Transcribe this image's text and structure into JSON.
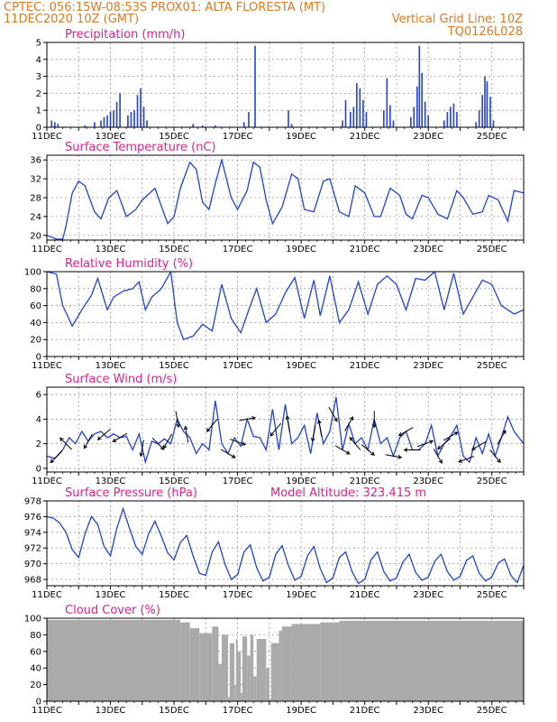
{
  "header": {
    "line1_left": "CPTEC:  056:15W-08:53S   PROX01: ALTA FLORESTA (MT)",
    "line2_left": "11DEC2020 10Z (GMT)",
    "line2_right": "Vertical Grid Line: 10Z",
    "line3_right": "TQ0126L028"
  },
  "colors": {
    "header": "#e07820",
    "title": "#e0208a",
    "series": "#2040e0",
    "cloud": "#aaaaaa"
  },
  "date_ticks": [
    "11DEC",
    "13DEC",
    "15DEC",
    "17DEC",
    "19DEC",
    "21DEC",
    "23DEC",
    "25DEC"
  ],
  "chart_data": [
    {
      "type": "bar",
      "title": "Precipitation (mm/h)",
      "ylim": [
        0,
        5
      ],
      "yticks": [
        "0",
        "1",
        "2",
        "3",
        "4",
        "5"
      ],
      "x_start": 0,
      "x_end": 15,
      "bars": [
        [
          0.15,
          0.4
        ],
        [
          0.25,
          0.3
        ],
        [
          0.35,
          0.2
        ],
        [
          1.2,
          0.1
        ],
        [
          1.5,
          0.3
        ],
        [
          1.7,
          0.4
        ],
        [
          1.8,
          0.6
        ],
        [
          1.9,
          0.7
        ],
        [
          2.0,
          0.9
        ],
        [
          2.1,
          1.0
        ],
        [
          2.2,
          1.5
        ],
        [
          2.3,
          2.0
        ],
        [
          2.55,
          0.7
        ],
        [
          2.65,
          0.9
        ],
        [
          2.75,
          1.0
        ],
        [
          2.85,
          1.9
        ],
        [
          2.95,
          2.3
        ],
        [
          3.05,
          1.2
        ],
        [
          3.15,
          0.4
        ],
        [
          4.6,
          0.2
        ],
        [
          4.9,
          0.1
        ],
        [
          5.3,
          0.1
        ],
        [
          6.2,
          0.3
        ],
        [
          6.35,
          0.9
        ],
        [
          6.55,
          4.8
        ],
        [
          7.6,
          1.0
        ],
        [
          7.7,
          0.2
        ],
        [
          9.3,
          0.4
        ],
        [
          9.4,
          1.6
        ],
        [
          9.55,
          0.9
        ],
        [
          9.65,
          1.2
        ],
        [
          9.75,
          2.6
        ],
        [
          9.85,
          2.3
        ],
        [
          9.95,
          1.6
        ],
        [
          10.05,
          0.9
        ],
        [
          10.6,
          1.0
        ],
        [
          10.7,
          2.9
        ],
        [
          10.8,
          1.3
        ],
        [
          10.9,
          0.4
        ],
        [
          11.45,
          0.6
        ],
        [
          11.55,
          1.2
        ],
        [
          11.65,
          2.4
        ],
        [
          11.72,
          4.8
        ],
        [
          11.8,
          3.2
        ],
        [
          11.9,
          1.5
        ],
        [
          12.0,
          0.7
        ],
        [
          12.5,
          0.4
        ],
        [
          12.6,
          0.9
        ],
        [
          12.7,
          1.2
        ],
        [
          12.8,
          1.4
        ],
        [
          12.9,
          0.9
        ],
        [
          13.5,
          0.3
        ],
        [
          13.6,
          1.0
        ],
        [
          13.7,
          1.9
        ],
        [
          13.78,
          3.0
        ],
        [
          13.85,
          2.7
        ],
        [
          13.95,
          1.8
        ],
        [
          14.05,
          0.4
        ]
      ]
    },
    {
      "type": "line",
      "title": "Surface Temperature (nC)",
      "ylim": [
        19,
        37
      ],
      "yticks": [
        "20",
        "24",
        "28",
        "32",
        "36"
      ],
      "ytick_values": [
        20,
        24,
        28,
        32,
        36
      ],
      "x_start": 0,
      "x_end": 15,
      "x": [
        0,
        0.3,
        0.5,
        0.6,
        0.8,
        1.0,
        1.2,
        1.5,
        1.7,
        1.95,
        2.2,
        2.5,
        2.8,
        3.0,
        3.4,
        3.8,
        4.0,
        4.2,
        4.5,
        4.7,
        4.9,
        5.1,
        5.3,
        5.5,
        5.8,
        6.0,
        6.3,
        6.5,
        6.7,
        6.9,
        7.1,
        7.4,
        7.7,
        7.9,
        8.1,
        8.4,
        8.7,
        8.9,
        9.2,
        9.5,
        9.7,
        10.0,
        10.3,
        10.5,
        10.8,
        11.1,
        11.3,
        11.5,
        11.8,
        12.0,
        12.3,
        12.6,
        12.9,
        13.1,
        13.4,
        13.7,
        13.9,
        14.2,
        14.5,
        14.7,
        15.0
      ],
      "y": [
        20,
        19.2,
        19.2,
        22,
        29,
        31.5,
        30.5,
        25,
        23.5,
        28,
        29.5,
        24,
        25.5,
        27.5,
        30,
        22.5,
        24,
        30,
        35.5,
        34,
        27,
        25.5,
        31,
        36,
        28,
        25.5,
        29.5,
        35.5,
        34.5,
        27.5,
        22.5,
        26,
        33,
        32,
        25.5,
        25,
        31.5,
        32,
        25,
        24,
        30.5,
        29,
        24,
        24,
        30,
        28.5,
        24.5,
        23.5,
        28.5,
        28,
        24.5,
        23.5,
        29.5,
        28,
        24.5,
        25,
        28.5,
        27.5,
        23,
        29.5,
        29
      ]
    },
    {
      "type": "line",
      "title": "Relative Humidity (%)",
      "ylim": [
        0,
        100
      ],
      "yticks": [
        "0",
        "20",
        "40",
        "60",
        "80",
        "100"
      ],
      "ytick_values": [
        0,
        20,
        40,
        60,
        80,
        100
      ],
      "x_start": 0,
      "x_end": 15,
      "x": [
        0,
        0.3,
        0.5,
        0.8,
        1.1,
        1.4,
        1.6,
        1.9,
        2.1,
        2.4,
        2.7,
        2.9,
        3.1,
        3.3,
        3.6,
        3.9,
        4.1,
        4.3,
        4.6,
        4.9,
        5.2,
        5.5,
        5.8,
        6.1,
        6.4,
        6.6,
        6.9,
        7.2,
        7.5,
        7.8,
        8.1,
        8.4,
        8.6,
        8.9,
        9.2,
        9.5,
        9.8,
        10.1,
        10.4,
        10.7,
        11.0,
        11.3,
        11.6,
        11.9,
        12.2,
        12.5,
        12.8,
        13.1,
        13.4,
        13.7,
        14.0,
        14.3,
        14.7,
        15.0
      ],
      "y": [
        100,
        97,
        60,
        36,
        55,
        72,
        92,
        55,
        70,
        77,
        80,
        88,
        55,
        70,
        80,
        100,
        40,
        20,
        24,
        38,
        30,
        85,
        45,
        28,
        60,
        80,
        40,
        50,
        75,
        93,
        45,
        90,
        48,
        95,
        40,
        55,
        88,
        50,
        85,
        95,
        85,
        55,
        92,
        90,
        100,
        55,
        98,
        50,
        70,
        90,
        85,
        60,
        50,
        55
      ]
    },
    {
      "type": "line",
      "title": "Surface Wind (m/s)",
      "ylim": [
        -0.3,
        6.6
      ],
      "yticks": [
        "0",
        "2",
        "4",
        "6"
      ],
      "ytick_values": [
        0,
        2,
        4,
        6
      ],
      "x_start": 0,
      "x_end": 15,
      "x": [
        0,
        0.25,
        0.5,
        0.7,
        0.9,
        1.1,
        1.3,
        1.5,
        1.7,
        1.9,
        2.1,
        2.3,
        2.5,
        2.7,
        2.9,
        3.1,
        3.3,
        3.5,
        3.7,
        3.9,
        4.1,
        4.3,
        4.5,
        4.7,
        4.9,
        5.1,
        5.3,
        5.5,
        5.7,
        5.9,
        6.1,
        6.3,
        6.5,
        6.7,
        6.9,
        7.1,
        7.3,
        7.5,
        7.7,
        7.9,
        8.1,
        8.3,
        8.5,
        8.7,
        8.9,
        9.1,
        9.3,
        9.5,
        9.7,
        9.9,
        10.1,
        10.3,
        10.5,
        10.7,
        10.9,
        11.1,
        11.3,
        11.5,
        11.7,
        11.9,
        12.1,
        12.3,
        12.5,
        12.7,
        12.9,
        13.1,
        13.3,
        13.5,
        13.7,
        13.9,
        14.1,
        14.3,
        14.5,
        14.7,
        15.0
      ],
      "y": [
        1.0,
        0.8,
        1.5,
        2.5,
        2.0,
        3.0,
        2.2,
        2.8,
        3.0,
        2.5,
        2.8,
        2.5,
        2.6,
        1.5,
        2.8,
        0.5,
        2.2,
        2.0,
        2.4,
        2.0,
        4.0,
        3.0,
        2.5,
        1.2,
        2.0,
        1.5,
        5.5,
        2.0,
        1.2,
        2.5,
        1.8,
        4.0,
        2.6,
        2.5,
        1.5,
        4.8,
        1.5,
        5.2,
        2.0,
        2.5,
        3.5,
        1.2,
        4.5,
        2.0,
        3.0,
        5.8,
        1.5,
        3.6,
        2.0,
        2.5,
        1.5,
        4.0,
        2.0,
        2.5,
        1.0,
        2.5,
        3.0,
        1.5,
        1.5,
        2.0,
        3.5,
        1.0,
        2.0,
        2.6,
        3.5,
        1.0,
        0.5,
        2.5,
        1.2,
        2.8,
        1.0,
        2.5,
        4.2,
        3.0,
        2.0
      ],
      "arrows": [
        [
          0.3,
          -135
        ],
        [
          0.6,
          135
        ],
        [
          1.3,
          -120
        ],
        [
          1.8,
          -140
        ],
        [
          2.3,
          -150
        ],
        [
          3.0,
          -100
        ],
        [
          3.5,
          -45
        ],
        [
          3.8,
          -120
        ],
        [
          4.1,
          -80
        ],
        [
          4.4,
          100
        ],
        [
          5.2,
          -130
        ],
        [
          5.7,
          -30
        ],
        [
          6.0,
          -20
        ],
        [
          6.3,
          10
        ],
        [
          7.2,
          -130
        ],
        [
          7.6,
          100
        ],
        [
          8.4,
          -100
        ],
        [
          8.6,
          100
        ],
        [
          9.0,
          -60
        ],
        [
          9.3,
          -30
        ],
        [
          9.5,
          60
        ],
        [
          9.7,
          130
        ],
        [
          10.1,
          -40
        ],
        [
          10.3,
          -90
        ],
        [
          10.9,
          -10
        ],
        [
          11.3,
          -150
        ],
        [
          11.5,
          180
        ],
        [
          11.9,
          20
        ],
        [
          12.3,
          -60
        ],
        [
          12.5,
          -140
        ],
        [
          12.7,
          30
        ],
        [
          13.2,
          -160
        ],
        [
          13.6,
          -150
        ],
        [
          14.1,
          -50
        ],
        [
          14.3,
          60
        ]
      ]
    },
    {
      "type": "line",
      "title": "Surface Pressure (hPa)",
      "annotation": "Model Altitude: 323.415  m",
      "ylim": [
        967.2,
        978
      ],
      "yticks": [
        "968",
        "970",
        "972",
        "974",
        "976",
        "978"
      ],
      "ytick_values": [
        968,
        970,
        972,
        974,
        976,
        978
      ],
      "x_start": 0,
      "x_end": 15,
      "x": [
        0,
        0.2,
        0.4,
        0.6,
        0.8,
        1.0,
        1.2,
        1.4,
        1.6,
        1.8,
        2.0,
        2.2,
        2.4,
        2.6,
        2.8,
        3.0,
        3.2,
        3.4,
        3.6,
        3.8,
        4.0,
        4.2,
        4.4,
        4.6,
        4.8,
        5.0,
        5.2,
        5.4,
        5.6,
        5.8,
        6.0,
        6.2,
        6.4,
        6.6,
        6.8,
        7.0,
        7.2,
        7.4,
        7.6,
        7.8,
        8.0,
        8.2,
        8.4,
        8.6,
        8.8,
        9.0,
        9.2,
        9.4,
        9.6,
        9.8,
        10.0,
        10.2,
        10.4,
        10.6,
        10.8,
        11.0,
        11.2,
        11.4,
        11.6,
        11.8,
        12.0,
        12.2,
        12.4,
        12.6,
        12.8,
        13.0,
        13.2,
        13.4,
        13.6,
        13.8,
        14.0,
        14.2,
        14.4,
        14.6,
        14.8,
        15.0
      ],
      "y": [
        976,
        975.8,
        975.2,
        974,
        971.8,
        970.8,
        973.8,
        976,
        975,
        972.2,
        971,
        974.5,
        977,
        974.5,
        972.2,
        971.2,
        973.8,
        975.4,
        973.5,
        971.4,
        970.5,
        972.7,
        973.6,
        971,
        968.8,
        968.5,
        971.5,
        972.8,
        970,
        968,
        968.6,
        971.5,
        972.4,
        969.5,
        967.8,
        968.3,
        971.2,
        972.3,
        969.8,
        967.9,
        968.4,
        971,
        972.2,
        969.4,
        967.6,
        968.2,
        970.8,
        971.5,
        969,
        967.5,
        968,
        970.5,
        971.5,
        969,
        967.8,
        968.2,
        970.2,
        971.2,
        968.9,
        967.9,
        968.3,
        970.3,
        971.2,
        969,
        967.9,
        968.4,
        970.4,
        971,
        968.8,
        967.8,
        968.3,
        970.1,
        970.6,
        968.5,
        967.6,
        969.8
      ]
    },
    {
      "type": "bar",
      "title": "Cloud Cover (%)",
      "ylim": [
        0,
        100
      ],
      "yticks": [
        "0",
        "20",
        "40",
        "60",
        "80",
        "100"
      ],
      "x_start": 0,
      "x_end": 15,
      "segments": [
        [
          0,
          4.2,
          98
        ],
        [
          4.2,
          4.5,
          95
        ],
        [
          4.5,
          4.8,
          88
        ],
        [
          4.8,
          5.2,
          82
        ],
        [
          5.2,
          5.4,
          90
        ],
        [
          5.4,
          5.5,
          45
        ],
        [
          5.5,
          5.7,
          80
        ],
        [
          5.7,
          5.75,
          5
        ],
        [
          5.75,
          5.9,
          70
        ],
        [
          5.9,
          5.95,
          20
        ],
        [
          5.95,
          6.0,
          75
        ],
        [
          6.0,
          6.1,
          60
        ],
        [
          6.1,
          6.15,
          10
        ],
        [
          6.15,
          6.3,
          78
        ],
        [
          6.3,
          6.4,
          55
        ],
        [
          6.4,
          6.5,
          80
        ],
        [
          6.5,
          6.6,
          30
        ],
        [
          6.6,
          6.9,
          75
        ],
        [
          6.9,
          7.0,
          40
        ],
        [
          7.0,
          7.05,
          3
        ],
        [
          7.05,
          7.3,
          70
        ],
        [
          7.3,
          7.4,
          85
        ],
        [
          7.4,
          7.7,
          90
        ],
        [
          7.7,
          8.6,
          93
        ],
        [
          8.6,
          9.2,
          95
        ],
        [
          9.2,
          15,
          97
        ]
      ]
    }
  ]
}
